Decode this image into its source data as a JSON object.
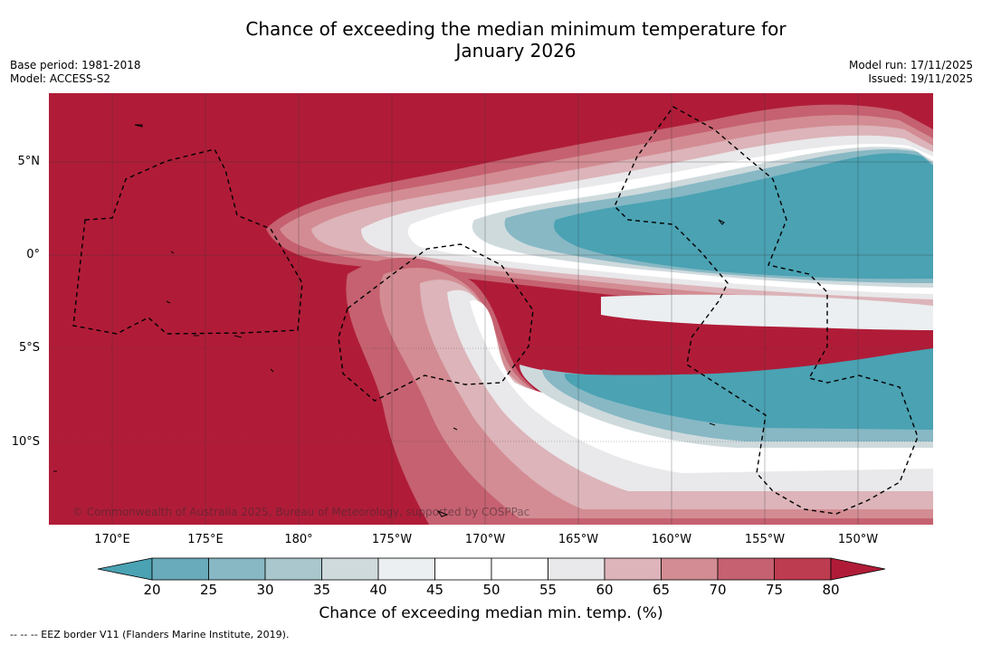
{
  "title": {
    "line1": "Chance of exceeding the median minimum temperature for",
    "line2": "January 2026"
  },
  "meta": {
    "base_period": "Base period: 1981-2018",
    "model": "Model: ACCESS-S2",
    "model_run": "Model run: 17/11/2025",
    "issued": "Issued: 19/11/2025"
  },
  "map": {
    "lat_labels": [
      "5°N",
      "0°",
      "5°S",
      "10°S"
    ],
    "lon_labels": [
      "170°E",
      "175°E",
      "180°",
      "175°W",
      "170°W",
      "165°W",
      "160°W",
      "155°W",
      "150°W"
    ],
    "copyright": "© Commonwealth of Australia 2025, Bureau of Meteorology, supported by COSPPac"
  },
  "colorbar": {
    "title": "Chance of exceeding median min. temp. (%)",
    "ticks": [
      "20",
      "25",
      "30",
      "35",
      "40",
      "45",
      "50",
      "55",
      "60",
      "65",
      "70",
      "75",
      "80"
    ],
    "colors": [
      "#4aa2b3",
      "#69aabb",
      "#87b8c4",
      "#a9c7cc",
      "#cfdadd",
      "#ebeff1",
      "#ffffff",
      "#ffffff",
      "#e9e8ea",
      "#dcb4b9",
      "#d38c93",
      "#c56170",
      "#bd3c50",
      "#b01c38"
    ]
  },
  "footnote": "--  --  -- EEZ border V11 (Flanders Marine Institute, 2019)."
}
